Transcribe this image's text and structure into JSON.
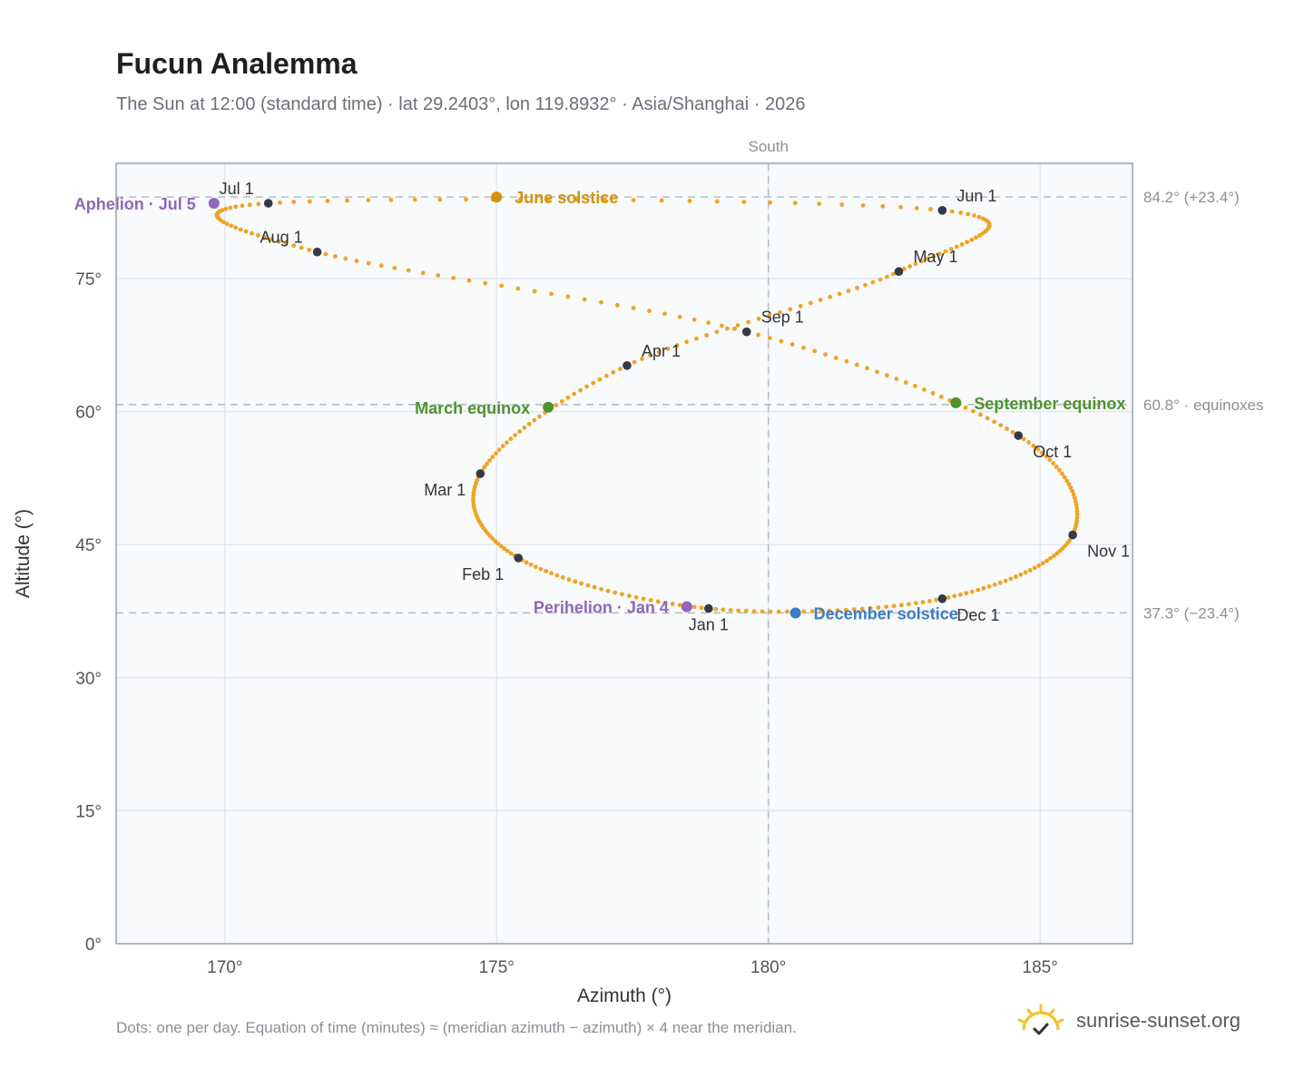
{
  "header": {
    "title": "Fucun Analemma",
    "subtitle": "The Sun at 12:00 (standard time) · lat 29.2403°, lon 119.8932° · Asia/Shanghai · 2026"
  },
  "footer": {
    "note": "Dots: one per day. Equation of time (minutes) ≈ (meridian azimuth − azimuth) × 4 near the meridian.",
    "brand": "sunrise-sunset.org"
  },
  "colors": {
    "path": "#f0a324",
    "month": "#343a45",
    "solstice_june": "#d4920c",
    "solstice_december": "#3a7dc5",
    "equinox": "#4f9130",
    "apsis": "#8e67b8",
    "reference": "#b8bec7",
    "plot_bg": "#f8fafc",
    "frame": "#9aa3af",
    "grid": "#e4e8ee"
  },
  "chart_data": {
    "type": "scatter",
    "title": "Fucun Analemma",
    "xlabel": "Azimuth (°)",
    "ylabel": "Altitude (°)",
    "xlim": [
      168,
      186.7
    ],
    "ylim": [
      0,
      88
    ],
    "xticks": [
      170,
      175,
      180,
      185
    ],
    "xtick_labels": [
      "170°",
      "175°",
      "180°",
      "185°"
    ],
    "yticks": [
      0,
      15,
      30,
      45,
      60,
      75
    ],
    "ytick_labels": [
      "0°",
      "15°",
      "30°",
      "45°",
      "60°",
      "75°"
    ],
    "grid": true,
    "meridian": {
      "azimuth": 180,
      "label": "South"
    },
    "reference_lines": [
      {
        "altitude": 84.2,
        "label": "84.2° (+23.4°)"
      },
      {
        "altitude": 60.8,
        "label": "60.8° · equinoxes"
      },
      {
        "altitude": 37.3,
        "label": "37.3° (−23.4°)"
      }
    ],
    "daily_path": [
      {
        "month": "Jan",
        "azimuth": 178.9,
        "altitude": 37.8
      },
      {
        "month": "Feb",
        "azimuth": 175.4,
        "altitude": 43.5
      },
      {
        "month": "Mar",
        "azimuth": 174.7,
        "altitude": 53.0
      },
      {
        "month": "Apr",
        "azimuth": 177.4,
        "altitude": 65.2
      },
      {
        "month": "May",
        "azimuth": 182.4,
        "altitude": 75.8
      },
      {
        "month": "Jun",
        "azimuth": 183.2,
        "altitude": 82.7
      },
      {
        "month": "Jul",
        "azimuth": 170.8,
        "altitude": 83.5
      },
      {
        "month": "Aug",
        "azimuth": 171.7,
        "altitude": 78.0
      },
      {
        "month": "Sep",
        "azimuth": 179.6,
        "altitude": 69.0
      },
      {
        "month": "Oct",
        "azimuth": 184.6,
        "altitude": 57.3
      },
      {
        "month": "Nov",
        "azimuth": 185.6,
        "altitude": 46.1
      },
      {
        "month": "Dec",
        "azimuth": 183.2,
        "altitude": 38.9
      }
    ],
    "month_markers": [
      {
        "label": "Jan 1",
        "azimuth": 178.9,
        "altitude": 37.8,
        "anchor": "below"
      },
      {
        "label": "Feb 1",
        "azimuth": 175.4,
        "altitude": 43.5,
        "anchor": "below-left"
      },
      {
        "label": "Mar 1",
        "azimuth": 174.7,
        "altitude": 53.0,
        "anchor": "below-left"
      },
      {
        "label": "Apr 1",
        "azimuth": 177.4,
        "altitude": 65.2,
        "anchor": "above-right"
      },
      {
        "label": "May 1",
        "azimuth": 182.4,
        "altitude": 75.8,
        "anchor": "above-right"
      },
      {
        "label": "Jun 1",
        "azimuth": 183.2,
        "altitude": 82.7,
        "anchor": "above-right"
      },
      {
        "label": "Jul 1",
        "azimuth": 170.8,
        "altitude": 83.5,
        "anchor": "above-left"
      },
      {
        "label": "Aug 1",
        "azimuth": 171.7,
        "altitude": 78.0,
        "anchor": "above-left"
      },
      {
        "label": "Sep 1",
        "azimuth": 179.6,
        "altitude": 69.0,
        "anchor": "above-right"
      },
      {
        "label": "Oct 1",
        "azimuth": 184.6,
        "altitude": 57.3,
        "anchor": "below-right"
      },
      {
        "label": "Nov 1",
        "azimuth": 185.6,
        "altitude": 46.1,
        "anchor": "below-right"
      },
      {
        "label": "Dec 1",
        "azimuth": 183.2,
        "altitude": 38.9,
        "anchor": "below-right"
      }
    ],
    "events": [
      {
        "label": "June solstice",
        "azimuth": 175.0,
        "altitude": 84.2,
        "kind": "solstice_june",
        "side": "right"
      },
      {
        "label": "December solstice",
        "azimuth": 180.5,
        "altitude": 37.3,
        "kind": "solstice_december",
        "side": "right"
      },
      {
        "label": "March equinox",
        "azimuth": 175.95,
        "altitude": 60.5,
        "kind": "equinox",
        "side": "left"
      },
      {
        "label": "September equinox",
        "azimuth": 183.45,
        "altitude": 61.0,
        "kind": "equinox",
        "side": "right"
      },
      {
        "label": "Perihelion · Jan 4",
        "azimuth": 178.5,
        "altitude": 38.0,
        "kind": "apsis",
        "side": "left"
      },
      {
        "label": "Aphelion · Jul 5",
        "azimuth": 169.8,
        "altitude": 83.5,
        "kind": "apsis",
        "side": "left"
      }
    ]
  }
}
